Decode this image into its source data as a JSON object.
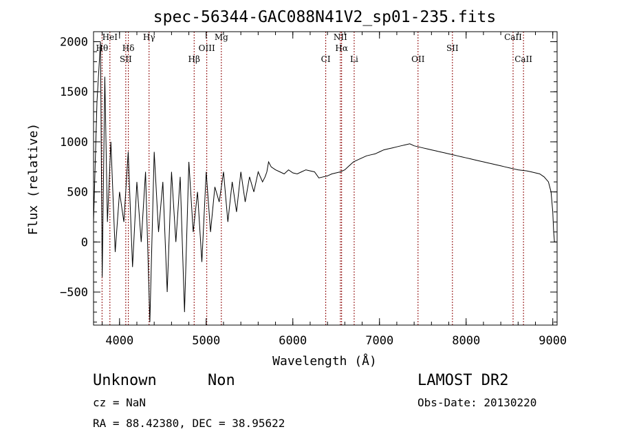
{
  "chart_data": {
    "type": "line",
    "title": "spec-56344-GAC088N41V2_sp01-235.fits",
    "xlabel": "Wavelength (Å)",
    "ylabel": "Flux (relative)",
    "xlim": [
      3700,
      9050
    ],
    "ylim": [
      -830,
      2100
    ],
    "x_ticks": [
      4000,
      5000,
      6000,
      7000,
      8000,
      9000
    ],
    "y_ticks": [
      -500,
      0,
      500,
      1000,
      1500,
      2000
    ],
    "grid": false,
    "series": [
      {
        "x": [
          3700,
          3740,
          3780,
          3800,
          3830,
          3860,
          3900,
          3950,
          4000,
          4050,
          4100,
          4150,
          4200,
          4250,
          4300,
          4350,
          4400,
          4450,
          4500,
          4550,
          4600,
          4650,
          4700,
          4750,
          4800,
          4850,
          4900,
          4950,
          5000,
          5050,
          5100,
          5150,
          5200,
          5250,
          5300,
          5350,
          5400,
          5450,
          5500,
          5550,
          5600,
          5650,
          5680,
          5700,
          5720,
          5750,
          5800,
          5850,
          5900,
          5950,
          6000,
          6050,
          6100,
          6150,
          6200,
          6250,
          6300,
          6350,
          6400,
          6450,
          6500,
          6550,
          6600,
          6650,
          6700,
          6750,
          6800,
          6850,
          6900,
          6950,
          7000,
          7050,
          7100,
          7150,
          7200,
          7250,
          7300,
          7350,
          7400,
          7450,
          7500,
          7550,
          7600,
          7650,
          7700,
          7750,
          7800,
          7850,
          7900,
          7950,
          8000,
          8050,
          8100,
          8150,
          8200,
          8250,
          8300,
          8350,
          8400,
          8450,
          8500,
          8550,
          8600,
          8650,
          8700,
          8750,
          8800,
          8850,
          8900,
          8950,
          8980,
          9000,
          9010,
          9020
        ],
        "y": [
          200,
          1400,
          2000,
          -350,
          1650,
          200,
          1000,
          -100,
          500,
          200,
          900,
          -250,
          600,
          0,
          700,
          -800,
          900,
          100,
          600,
          -500,
          700,
          0,
          650,
          -700,
          800,
          100,
          500,
          -200,
          700,
          100,
          550,
          400,
          700,
          200,
          600,
          300,
          700,
          400,
          650,
          500,
          700,
          600,
          650,
          700,
          800,
          750,
          720,
          700,
          680,
          720,
          690,
          680,
          700,
          720,
          710,
          700,
          640,
          650,
          660,
          680,
          690,
          700,
          720,
          760,
          800,
          820,
          840,
          860,
          870,
          880,
          900,
          920,
          930,
          940,
          950,
          960,
          970,
          980,
          960,
          950,
          940,
          930,
          920,
          910,
          900,
          890,
          880,
          870,
          860,
          850,
          840,
          830,
          820,
          810,
          800,
          790,
          780,
          770,
          760,
          750,
          740,
          730,
          720,
          715,
          710,
          700,
          690,
          680,
          650,
          600,
          500,
          300,
          100,
          0
        ]
      }
    ],
    "lines": [
      {
        "label": "Hθ",
        "x": 3798
      },
      {
        "label": "HeI",
        "x": 3889
      },
      {
        "label": "SII",
        "x": 4072
      },
      {
        "label": "Hδ",
        "x": 4102
      },
      {
        "label": "Hγ",
        "x": 4341
      },
      {
        "label": "Hβ",
        "x": 4861
      },
      {
        "label": "OIII",
        "x": 5007
      },
      {
        "label": "Mg",
        "x": 5175
      },
      {
        "label": "CI",
        "x": 6380
      },
      {
        "label": "NII",
        "x": 6549
      },
      {
        "label": "Hα",
        "x": 6563
      },
      {
        "label": "Li",
        "x": 6708
      },
      {
        "label": "OII",
        "x": 7445
      },
      {
        "label": "SII",
        "x": 7842
      },
      {
        "label": "CaII",
        "x": 8542
      },
      {
        "label": "CaII",
        "x": 8662
      }
    ]
  },
  "footer": {
    "class_label": "Unknown",
    "subclass_label": "Non",
    "survey": "LAMOST DR2",
    "cz": "cz = NaN",
    "obs_date": "Obs-Date: 20130220",
    "coords": "RA =  88.42380, DEC =  38.95622"
  },
  "colors": {
    "spectrum": "#000000",
    "line_marker": "#8b0000",
    "axes": "#000000",
    "background": "#ffffff"
  }
}
